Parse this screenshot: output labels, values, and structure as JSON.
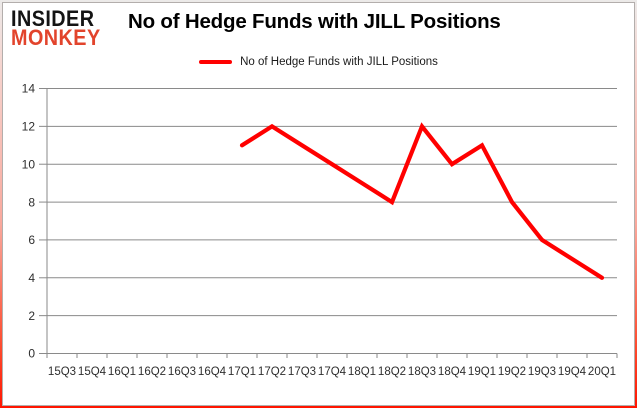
{
  "header": {
    "logo_line1": "INSIDER",
    "logo_line2": "MONKEY"
  },
  "chart_data": {
    "type": "line",
    "title": "No of Hedge Funds with JILL Positions",
    "categories": [
      "15Q3",
      "15Q4",
      "16Q1",
      "16Q2",
      "16Q3",
      "16Q4",
      "17Q1",
      "17Q2",
      "17Q3",
      "17Q4",
      "18Q1",
      "18Q2",
      "18Q3",
      "18Q4",
      "19Q1",
      "19Q2",
      "19Q3",
      "19Q4",
      "20Q1"
    ],
    "series": [
      {
        "name": "No of Hedge Funds with JILL Positions",
        "values": [
          null,
          null,
          null,
          null,
          null,
          null,
          11,
          12,
          11,
          10,
          9,
          8,
          12,
          10,
          11,
          8,
          6,
          5,
          4
        ]
      }
    ],
    "xlabel": "",
    "ylabel": "",
    "ylim": [
      0,
      14
    ],
    "ytick_step": 2,
    "grid": true,
    "legend_position": "top-center",
    "line_color": "#ff0000"
  },
  "colors": {
    "accent_red": "#ff0000",
    "logo_red": "#e2442c",
    "grid_gray": "#8a8a8a",
    "axis_text": "#2e2e2e",
    "frame_border_bottom": "#ff1500",
    "frame_border_top": "#f6d2cc"
  }
}
